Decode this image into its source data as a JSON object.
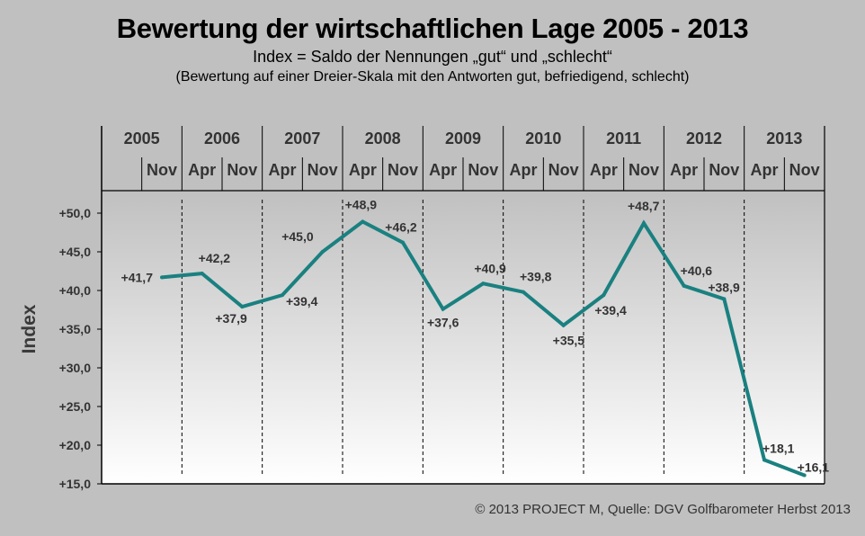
{
  "header": {
    "title": "Bewertung der wirtschaftlichen Lage 2005 - 2013",
    "subtitle": "Index = Saldo der Nennungen „gut“ und „schlecht“",
    "subtitle2": "(Bewertung auf einer Dreier-Skala mit den Antworten gut, befriedigend, schlecht)"
  },
  "footer": "© 2013 PROJECT M,  Quelle: DGV Golfbarometer Herbst 2013",
  "chart_data": {
    "type": "line",
    "title": "Bewertung der wirtschaftlichen Lage 2005 - 2013",
    "xlabel": "",
    "ylabel": "Index",
    "ylim": [
      15,
      50
    ],
    "yticks": [
      50,
      45,
      40,
      35,
      30,
      25,
      20,
      15
    ],
    "ytick_labels": [
      "+50,0",
      "+45,0",
      "+40,0",
      "+35,0",
      "+30,0",
      "+25,0",
      "+20,0",
      "+15,0"
    ],
    "years": [
      "2005",
      "2006",
      "2007",
      "2008",
      "2009",
      "2010",
      "2011",
      "2012",
      "2013"
    ],
    "months": [
      "",
      "Nov",
      "Apr",
      "Nov",
      "Apr",
      "Nov",
      "Apr",
      "Nov",
      "Apr",
      "Nov",
      "Apr",
      "Nov",
      "Apr",
      "Nov",
      "Apr",
      "Nov",
      "Apr",
      "Nov"
    ],
    "series": [
      {
        "name": "Index",
        "color": "#1a8080",
        "points": [
          {
            "period": "Nov 2005",
            "value": 41.7,
            "label": "+41,7"
          },
          {
            "period": "Apr 2006",
            "value": 42.2,
            "label": "+42,2"
          },
          {
            "period": "Nov 2006",
            "value": 37.9,
            "label": "+37,9"
          },
          {
            "period": "Apr 2007",
            "value": 39.4,
            "label": "+39,4"
          },
          {
            "period": "Nov 2007",
            "value": 45.0,
            "label": "+45,0"
          },
          {
            "period": "Apr 2008",
            "value": 48.9,
            "label": "+48,9"
          },
          {
            "period": "Nov 2008",
            "value": 46.2,
            "label": "+46,2"
          },
          {
            "period": "Apr 2009",
            "value": 37.6,
            "label": "+37,6"
          },
          {
            "period": "Nov 2009",
            "value": 40.9,
            "label": "+40,9"
          },
          {
            "period": "Apr 2010",
            "value": 39.8,
            "label": "+39,8"
          },
          {
            "period": "Nov 2010",
            "value": 35.5,
            "label": "+35,5"
          },
          {
            "period": "Apr 2011",
            "value": 39.4,
            "label": "+39,4"
          },
          {
            "period": "Nov 2011",
            "value": 48.7,
            "label": "+48,7"
          },
          {
            "period": "Apr 2012",
            "value": 40.6,
            "label": "+40,6"
          },
          {
            "period": "Nov 2012",
            "value": 38.9,
            "label": "+38,9"
          },
          {
            "period": "Apr 2013",
            "value": 18.1,
            "label": "+18,1"
          },
          {
            "period": "Nov 2013",
            "value": 16.1,
            "label": "+16,1"
          }
        ]
      }
    ],
    "grid": false,
    "legend": "none"
  }
}
